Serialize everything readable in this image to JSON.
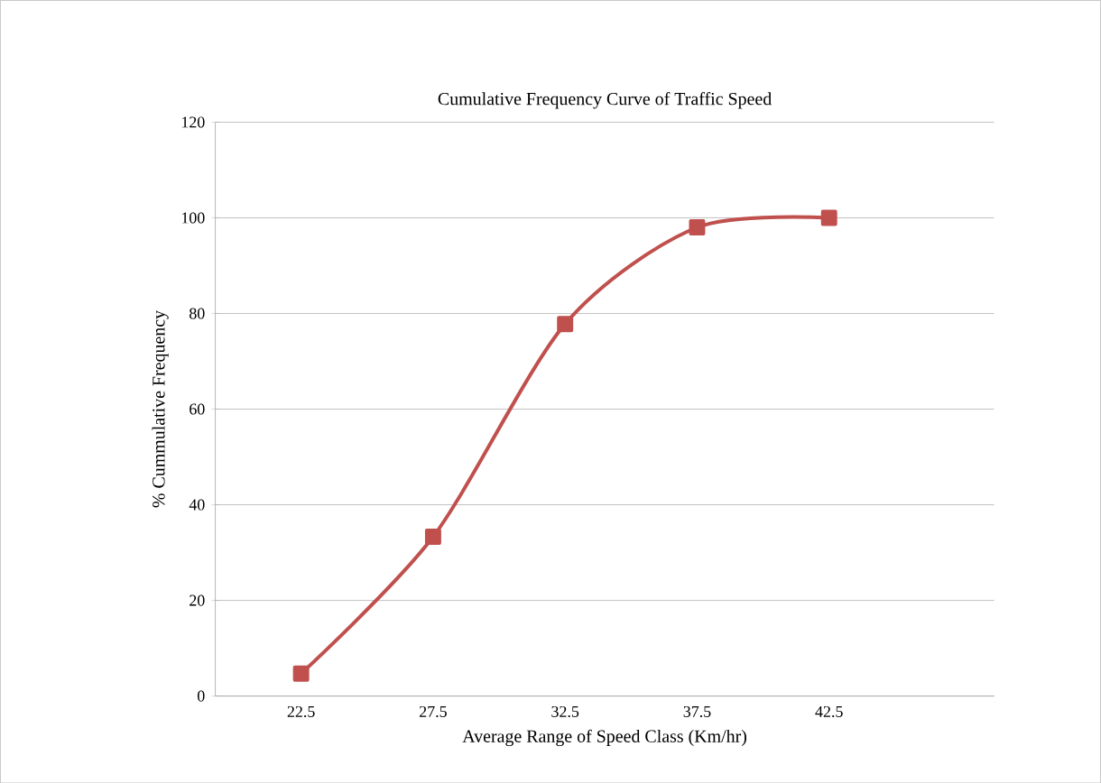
{
  "chart_data": {
    "type": "line",
    "title": "Cumulative Frequency Curve of Traffic Speed",
    "xlabel": "Average Range of Speed Class (Km/hr)",
    "ylabel": "% Cummulative Frequency",
    "categories": [
      "22.5",
      "27.5",
      "32.5",
      "37.5",
      "42.5"
    ],
    "series": [
      {
        "color": "#c0504d",
        "values": [
          4.7,
          33.3,
          77.8,
          98,
          100
        ]
      }
    ],
    "ylim": [
      0,
      120
    ],
    "yticks": [
      0,
      20,
      40,
      60,
      80,
      100,
      120
    ],
    "grid": "y",
    "marker": "square",
    "line_style": "solid"
  }
}
